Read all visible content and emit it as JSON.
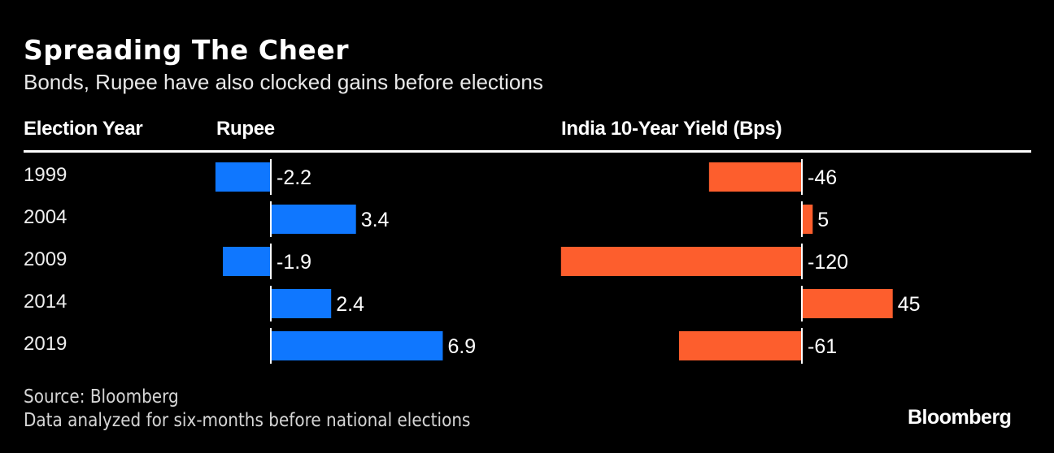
{
  "chart_data": {
    "type": "bar",
    "orientation": "horizontal",
    "title": "Spreading The Cheer",
    "subtitle": "Bonds, Rupee have also clocked gains before elections",
    "category_header": "Election Year",
    "categories": [
      "1999",
      "2004",
      "2009",
      "2014",
      "2019"
    ],
    "series": [
      {
        "name": "Rupee",
        "values": [
          -2.2,
          3.4,
          -1.9,
          2.4,
          6.9
        ],
        "color": "#0f77ff"
      },
      {
        "name": "India 10-Year Yield (Bps)",
        "values": [
          -46,
          5,
          -120,
          45,
          -61
        ],
        "color": "#fd5e2d"
      }
    ],
    "grid": false,
    "legend": "none",
    "footnotes": [
      "Source: Bloomberg",
      "Data analyzed for six-months before national elections"
    ],
    "logo": "Bloomberg"
  }
}
